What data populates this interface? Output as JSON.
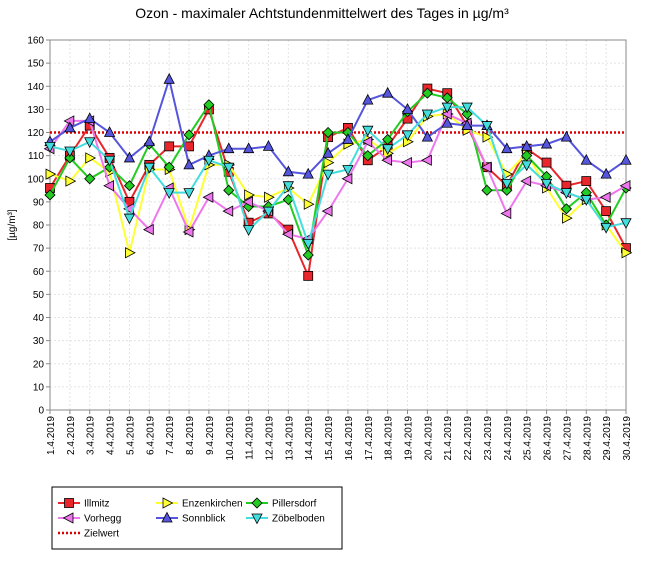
{
  "chart_data": {
    "type": "line",
    "title": "Ozon -  maximaler Achtstundenmittelwert des Tages in µg/m³",
    "xlabel": "",
    "ylabel": "[µg/m³]",
    "ylim": [
      0,
      160
    ],
    "yticks": [
      0,
      10,
      20,
      30,
      40,
      50,
      60,
      70,
      80,
      90,
      100,
      110,
      120,
      130,
      140,
      150,
      160
    ],
    "grid": true,
    "legend_position": "bottom-left",
    "categories": [
      "1.4.2019",
      "2.4.2019",
      "3.4.2019",
      "4.4.2019",
      "5.4.2019",
      "6.4.2019",
      "7.4.2019",
      "8.4.2019",
      "9.4.2019",
      "10.4.2019",
      "11.4.2019",
      "12.4.2019",
      "13.4.2019",
      "14.4.2019",
      "15.4.2019",
      "16.4.2019",
      "17.4.2019",
      "18.4.2019",
      "19.4.2019",
      "20.4.2019",
      "21.4.2019",
      "22.4.2019",
      "23.4.2019",
      "24.4.2019",
      "25.4.2019",
      "26.4.2019",
      "27.4.2019",
      "28.4.2019",
      "29.4.2019",
      "30.4.2019"
    ],
    "series": [
      {
        "name": "Illmitz",
        "color": "#e8262b",
        "marker": "square",
        "values": [
          96,
          110,
          123,
          109,
          90,
          106,
          114,
          114,
          130,
          103,
          81,
          85,
          78,
          58,
          118,
          122,
          108,
          114,
          126,
          139,
          137,
          123,
          105,
          97,
          113,
          107,
          97,
          99,
          86,
          70
        ]
      },
      {
        "name": "Enzenkirchen",
        "color": "#ffff33",
        "marker": "triangle-right",
        "values": [
          102,
          99,
          109,
          103,
          68,
          104,
          104,
          78,
          106,
          106,
          93,
          92,
          96,
          89,
          107,
          115,
          117,
          111,
          116,
          127,
          128,
          121,
          118,
          102,
          111,
          96,
          83,
          91,
          80,
          68
        ]
      },
      {
        "name": "Pillersdorf",
        "color": "#22cc22",
        "marker": "diamond",
        "values": [
          93,
          109,
          100,
          105,
          97,
          115,
          105,
          119,
          132,
          95,
          88,
          88,
          91,
          67,
          120,
          120,
          110,
          117,
          129,
          137,
          135,
          128,
          95,
          95,
          110,
          101,
          87,
          94,
          80,
          96
        ]
      },
      {
        "name": "Vorhegg",
        "color": "#ee77ee",
        "marker": "triangle-left",
        "values": [
          113,
          125,
          125,
          97,
          87,
          78,
          96,
          77,
          92,
          86,
          90,
          86,
          76,
          74,
          86,
          100,
          116,
          108,
          107,
          108,
          128,
          124,
          105,
          85,
          99,
          97,
          94,
          91,
          92,
          97
        ]
      },
      {
        "name": "Sonnblick",
        "color": "#5555dd",
        "marker": "triangle-up",
        "values": [
          116,
          122,
          126,
          120,
          109,
          116,
          143,
          106,
          110,
          113,
          113,
          114,
          103,
          102,
          111,
          117,
          134,
          137,
          130,
          118,
          124,
          123,
          123,
          113,
          114,
          115,
          118,
          108,
          102,
          108
        ]
      },
      {
        "name": "Zöbelboden",
        "color": "#44dddd",
        "marker": "triangle-down",
        "values": [
          114,
          112,
          116,
          108,
          83,
          105,
          94,
          94,
          108,
          105,
          78,
          86,
          97,
          72,
          102,
          104,
          121,
          113,
          119,
          128,
          131,
          131,
          123,
          98,
          106,
          98,
          94,
          91,
          79,
          81
        ]
      }
    ],
    "reference_lines": [
      {
        "name": "Zielwert",
        "value": 120,
        "color": "#dd0000",
        "style": "dotted"
      }
    ]
  }
}
